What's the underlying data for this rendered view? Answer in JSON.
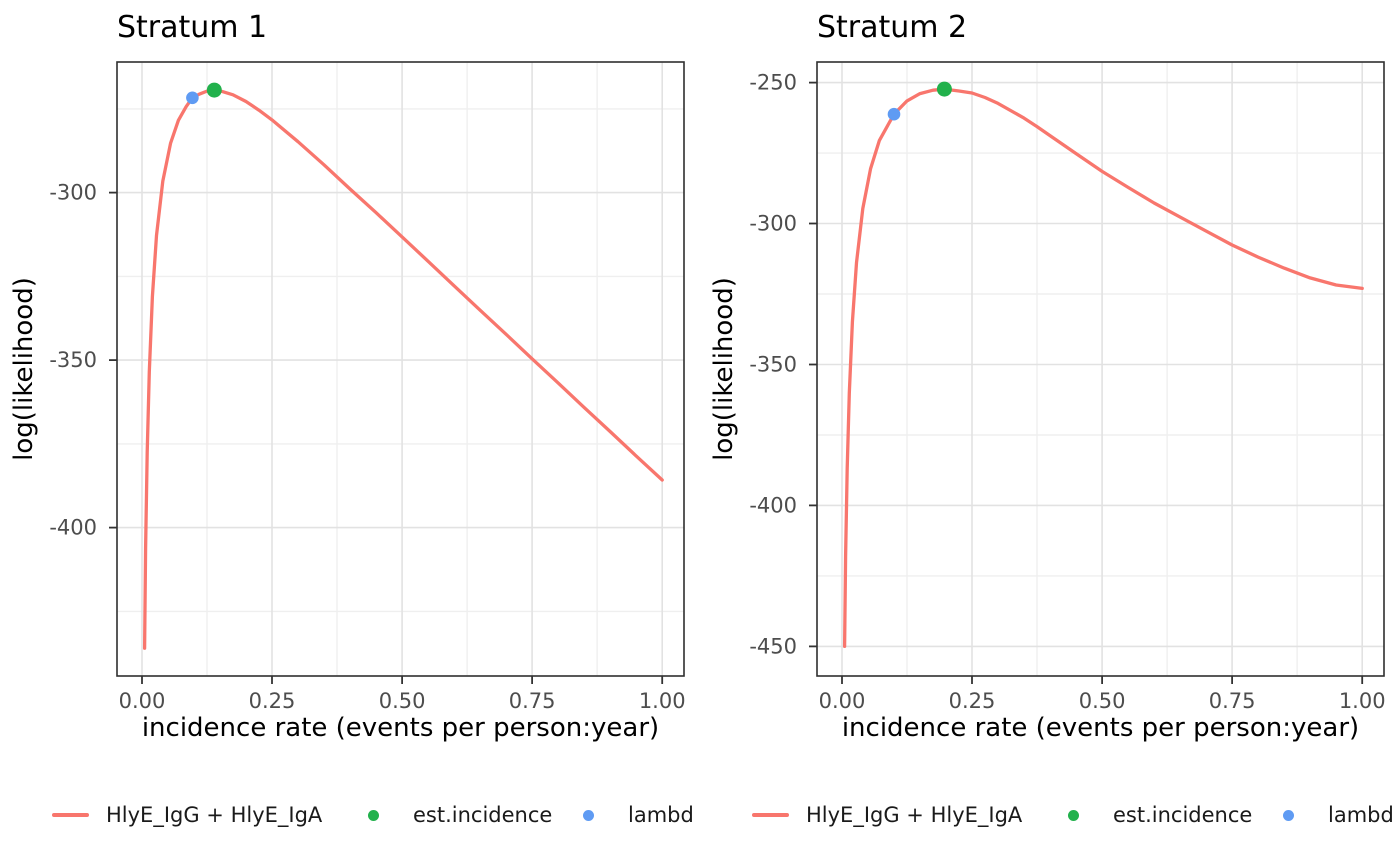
{
  "page": {
    "background": "#ffffff"
  },
  "styles": {
    "curve_color": "#F8766D",
    "est_color": "#22B14C",
    "lambda_color": "#5F9BF3",
    "grid_major": "#E2E2E2",
    "grid_minor": "#EFEFEF",
    "panel_border": "#2F2F2F",
    "tick_mark_color": "#333333",
    "tick_label_color": "#4D4D4D",
    "text_color": "#000000"
  },
  "legend": {
    "series_label": "HlyE_IgG + HlyE_IgA",
    "est_label": "est.incidence",
    "lambda_label": "lambd"
  },
  "chart_data": [
    {
      "type": "line",
      "title": "Stratum 1",
      "xlabel": "incidence rate (events per person:year)",
      "ylabel": "log(likelihood)",
      "xlim": [
        -0.048,
        1.042
      ],
      "ylim": [
        -444.3,
        -261.0
      ],
      "grid": true,
      "legend_position": "bottom",
      "xticks": {
        "values": [
          0,
          0.25,
          0.5,
          0.75,
          1
        ],
        "labels": [
          "0.00",
          "0.25",
          "0.50",
          "0.75",
          "1.00"
        ],
        "minor": [
          0.125,
          0.375,
          0.625,
          0.875
        ]
      },
      "yticks": {
        "values": [
          -300,
          -350,
          -400
        ],
        "labels": [
          "-300",
          "-350",
          "-400"
        ],
        "minor": [
          -275,
          -325,
          -375,
          -425
        ]
      },
      "series": [
        {
          "name": "HlyE_IgG + HlyE_IgA",
          "color_key": "curve_color",
          "x": [
            0.005,
            0.007,
            0.01,
            0.014,
            0.02,
            0.028,
            0.04,
            0.055,
            0.07,
            0.085,
            0.097,
            0.11,
            0.125,
            0.138,
            0.15,
            0.175,
            0.2,
            0.225,
            0.25,
            0.3,
            0.35,
            0.4,
            0.45,
            0.5,
            0.55,
            0.6,
            0.65,
            0.7,
            0.75,
            0.8,
            0.85,
            0.9,
            0.95,
            1.0
          ],
          "y": [
            -436.0,
            -406.1,
            -377.6,
            -353.5,
            -331.0,
            -312.8,
            -296.6,
            -285.2,
            -278.4,
            -274.3,
            -271.7,
            -270.6,
            -269.7,
            -269.4,
            -269.6,
            -270.8,
            -272.8,
            -275.4,
            -278.3,
            -284.8,
            -291.7,
            -298.9,
            -306.0,
            -313.2,
            -320.5,
            -327.8,
            -335.1,
            -342.3,
            -349.6,
            -356.8,
            -364.1,
            -371.3,
            -378.6,
            -385.8
          ]
        }
      ],
      "points": [
        {
          "name": "est.incidence",
          "x": 0.139,
          "y": -269.4,
          "color_key": "est_color",
          "r": 7.5
        },
        {
          "name": "lambda",
          "x": 0.097,
          "y": -271.7,
          "color_key": "lambda_color",
          "r": 6.3
        }
      ]
    },
    {
      "type": "line",
      "title": "Stratum 2",
      "xlabel": "incidence rate (events per person:year)",
      "ylabel": "log(likelihood)",
      "xlim": [
        -0.048,
        1.042
      ],
      "ylim": [
        -460.5,
        -242.7
      ],
      "grid": true,
      "legend_position": "bottom",
      "xticks": {
        "values": [
          0,
          0.25,
          0.5,
          0.75,
          1
        ],
        "labels": [
          "0.00",
          "0.25",
          "0.50",
          "0.75",
          "1.00"
        ],
        "minor": [
          0.125,
          0.375,
          0.625,
          0.875
        ]
      },
      "yticks": {
        "values": [
          -250,
          -300,
          -350,
          -400,
          -450
        ],
        "labels": [
          "-250",
          "-300",
          "-350",
          "-400",
          "-450"
        ],
        "minor": [
          -275,
          -325,
          -375,
          -425
        ]
      },
      "series": [
        {
          "name": "HlyE_IgG + HlyE_IgA",
          "color_key": "curve_color",
          "x": [
            0.005,
            0.007,
            0.01,
            0.014,
            0.02,
            0.028,
            0.04,
            0.055,
            0.072,
            0.1,
            0.125,
            0.15,
            0.175,
            0.197,
            0.225,
            0.25,
            0.275,
            0.3,
            0.35,
            0.375,
            0.4,
            0.45,
            0.5,
            0.55,
            0.6,
            0.65,
            0.7,
            0.75,
            0.8,
            0.85,
            0.9,
            0.95,
            1.0
          ],
          "y": [
            -450.0,
            -418.0,
            -386.9,
            -360.2,
            -334.9,
            -313.9,
            -294.7,
            -280.5,
            -270.5,
            -261.2,
            -256.5,
            -253.9,
            -252.7,
            -252.3,
            -253.0,
            -253.7,
            -255.3,
            -257.4,
            -262.6,
            -265.6,
            -268.8,
            -275.2,
            -281.5,
            -287.2,
            -292.7,
            -297.7,
            -302.7,
            -307.6,
            -311.9,
            -315.8,
            -319.3,
            -321.8,
            -323.0
          ]
        }
      ],
      "points": [
        {
          "name": "est.incidence",
          "x": 0.197,
          "y": -252.3,
          "color_key": "est_color",
          "r": 7.5
        },
        {
          "name": "lambda",
          "x": 0.1,
          "y": -261.2,
          "color_key": "lambda_color",
          "r": 6.3
        }
      ]
    }
  ]
}
